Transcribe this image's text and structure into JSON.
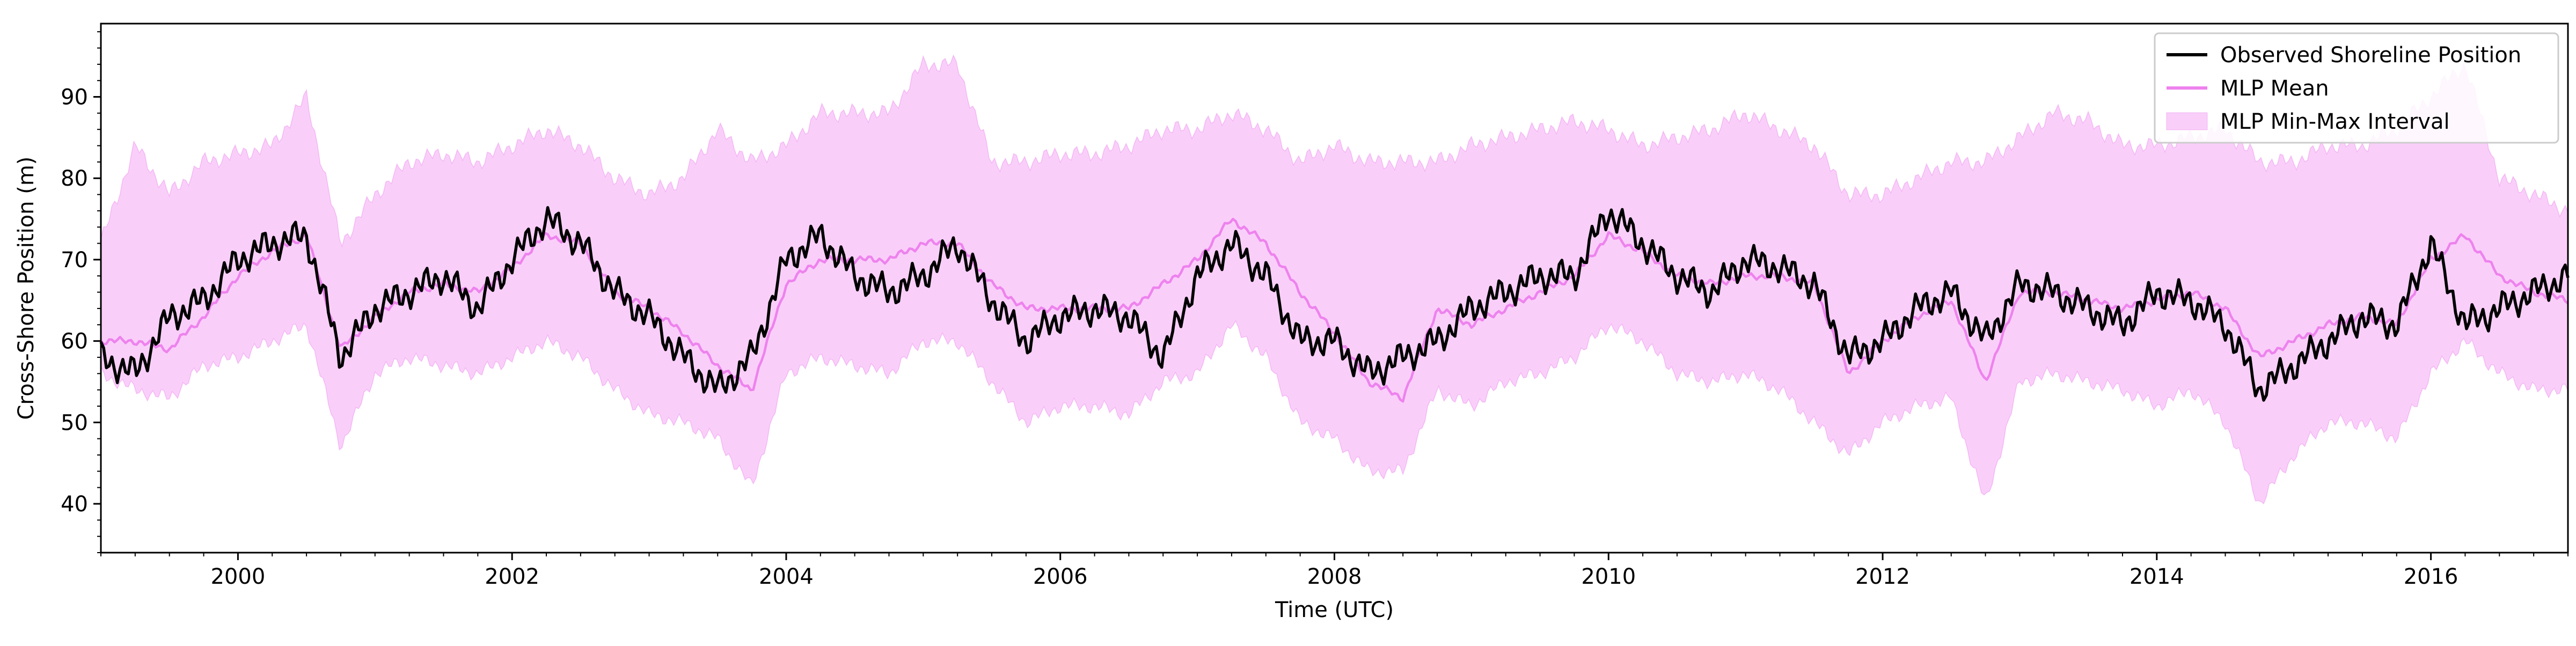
{
  "chart_data": {
    "type": "line",
    "title": "",
    "xlabel": "Time (UTC)",
    "ylabel": "Cross-Shore Position (m)",
    "xlim": [
      "1999-01",
      "2017-01"
    ],
    "ylim": [
      34,
      99
    ],
    "x_ticks": [
      "2000",
      "2002",
      "2004",
      "2006",
      "2008",
      "2010",
      "2012",
      "2014",
      "2016"
    ],
    "y_ticks": [
      40,
      50,
      60,
      70,
      80,
      90
    ],
    "grid": false,
    "legend_position": "top-right",
    "legend": [
      {
        "label": "Observed Shoreline Position",
        "kind": "line",
        "color": "#000000"
      },
      {
        "label": "MLP Mean",
        "kind": "line",
        "color": "#ee82ee"
      },
      {
        "label": "MLP Min-Max Interval",
        "kind": "band",
        "color": "#ee82ee"
      }
    ],
    "x": [
      "1999-01",
      "1999-04",
      "1999-07",
      "1999-10",
      "2000-01",
      "2000-04",
      "2000-07",
      "2000-10",
      "2001-01",
      "2001-04",
      "2001-07",
      "2001-10",
      "2002-01",
      "2002-04",
      "2002-07",
      "2002-10",
      "2003-01",
      "2003-04",
      "2003-07",
      "2003-10",
      "2004-01",
      "2004-04",
      "2004-07",
      "2004-10",
      "2005-01",
      "2005-04",
      "2005-07",
      "2005-10",
      "2006-01",
      "2006-04",
      "2006-07",
      "2006-10",
      "2007-01",
      "2007-04",
      "2007-07",
      "2007-10",
      "2008-01",
      "2008-04",
      "2008-07",
      "2008-10",
      "2009-01",
      "2009-04",
      "2009-07",
      "2009-10",
      "2010-01",
      "2010-04",
      "2010-07",
      "2010-10",
      "2011-01",
      "2011-04",
      "2011-07",
      "2011-10",
      "2012-01",
      "2012-04",
      "2012-07",
      "2012-10",
      "2013-01",
      "2013-04",
      "2013-07",
      "2013-10",
      "2014-01",
      "2014-04",
      "2014-07",
      "2014-10",
      "2015-01",
      "2015-04",
      "2015-07",
      "2015-10",
      "2016-01",
      "2016-04",
      "2016-07",
      "2016-10",
      "2017-01"
    ],
    "series": [
      {
        "name": "Observed Shoreline Position",
        "color": "#000000",
        "values": [
          58,
          56,
          63,
          65,
          70,
          72,
          73,
          58,
          64,
          66,
          68,
          64,
          70,
          75,
          72,
          66,
          63,
          58,
          54,
          58,
          70,
          73,
          68,
          66,
          68,
          72,
          65,
          60,
          63,
          64,
          63,
          58,
          68,
          72,
          68,
          60,
          60,
          56,
          58,
          60,
          64,
          66,
          68,
          68,
          76,
          72,
          68,
          66,
          70,
          69,
          67,
          58,
          60,
          64,
          66,
          60,
          67,
          66,
          64,
          62,
          66,
          65,
          62,
          54,
          57,
          60,
          63,
          62,
          72,
          62,
          64,
          66,
          68
        ]
      },
      {
        "name": "MLP Mean",
        "color": "#ee82ee",
        "values": [
          60,
          60,
          59,
          63,
          68,
          71,
          73,
          59,
          63,
          66,
          67,
          66,
          69,
          73,
          72,
          66,
          64,
          61,
          57,
          54,
          67,
          70,
          70,
          70,
          72,
          72,
          67,
          64,
          64,
          64,
          64,
          67,
          70,
          75,
          72,
          66,
          61,
          55,
          53,
          64,
          62,
          64,
          66,
          68,
          73,
          71,
          68,
          67,
          68,
          68,
          67,
          56,
          60,
          63,
          65,
          55,
          66,
          66,
          65,
          64,
          65,
          66,
          64,
          58,
          60,
          62,
          63,
          62,
          70,
          73,
          68,
          66,
          65
        ]
      },
      {
        "name": "MLP Min-Max Interval (upper)",
        "color": "#ee82ee",
        "values": [
          72,
          84,
          78,
          82,
          83,
          84,
          90,
          72,
          78,
          82,
          83,
          82,
          84,
          86,
          84,
          80,
          78,
          80,
          86,
          82,
          84,
          88,
          88,
          88,
          94,
          94,
          82,
          82,
          83,
          83,
          84,
          86,
          86,
          88,
          86,
          82,
          84,
          82,
          82,
          82,
          84,
          85,
          86,
          87,
          86,
          84,
          85,
          86,
          88,
          86,
          84,
          78,
          78,
          80,
          82,
          82,
          85,
          88,
          87,
          84,
          84,
          85,
          86,
          82,
          82,
          84,
          84,
          86,
          90,
          94,
          80,
          78,
          76
        ]
      },
      {
        "name": "MLP Min-Max Interval (lower)",
        "color": "#ee82ee",
        "values": [
          56,
          54,
          53,
          57,
          58,
          60,
          62,
          47,
          56,
          58,
          57,
          56,
          58,
          60,
          58,
          54,
          51,
          50,
          48,
          42,
          56,
          58,
          57,
          56,
          60,
          60,
          55,
          50,
          52,
          52,
          51,
          55,
          56,
          62,
          58,
          50,
          48,
          44,
          44,
          54,
          52,
          55,
          56,
          58,
          62,
          60,
          56,
          55,
          56,
          54,
          50,
          46,
          50,
          52,
          53,
          40,
          55,
          56,
          55,
          54,
          52,
          54,
          50,
          40,
          46,
          50,
          50,
          48,
          56,
          60,
          56,
          54,
          54
        ]
      }
    ]
  }
}
